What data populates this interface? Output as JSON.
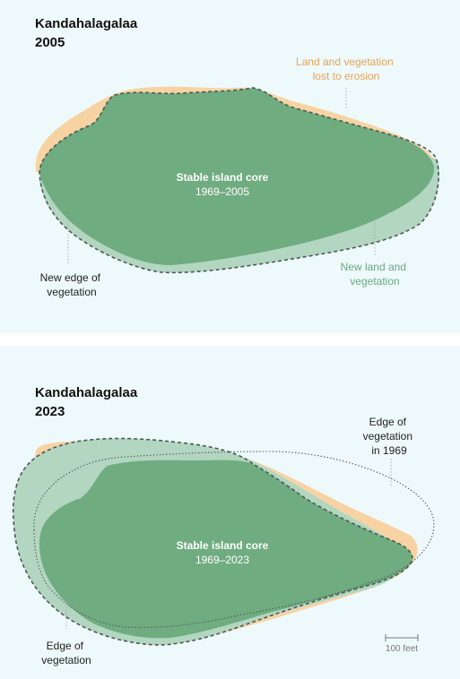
{
  "panels": [
    {
      "title_line1": "Kandahalagalaa",
      "title_line2": "2005",
      "core_title": "Stable island core",
      "core_range": "1969–2005",
      "annotations": {
        "erosion": [
          "Land and vegetation",
          "lost to erosion"
        ],
        "new_edge": [
          "New edge of",
          "vegetation"
        ],
        "new_land": [
          "New land and",
          "vegetation"
        ]
      }
    },
    {
      "title_line1": "Kandahalagalaa",
      "title_line2": "2023",
      "core_title": "Stable island core",
      "core_range": "1969–2023",
      "annotations": {
        "edge_1969": [
          "Edge of",
          "vegetation",
          "in 1969"
        ],
        "edge": [
          "Edge of",
          "vegetation"
        ]
      },
      "scale_label": "100 feet"
    }
  ],
  "colors": {
    "background": "#eef9fb",
    "erosion": "#f7d3a4",
    "erosion_text": "#e6a459",
    "new_land": "#b2d6c0",
    "new_land_text": "#6aa882",
    "core": "#6fac80",
    "outline": "#4a5a55"
  }
}
